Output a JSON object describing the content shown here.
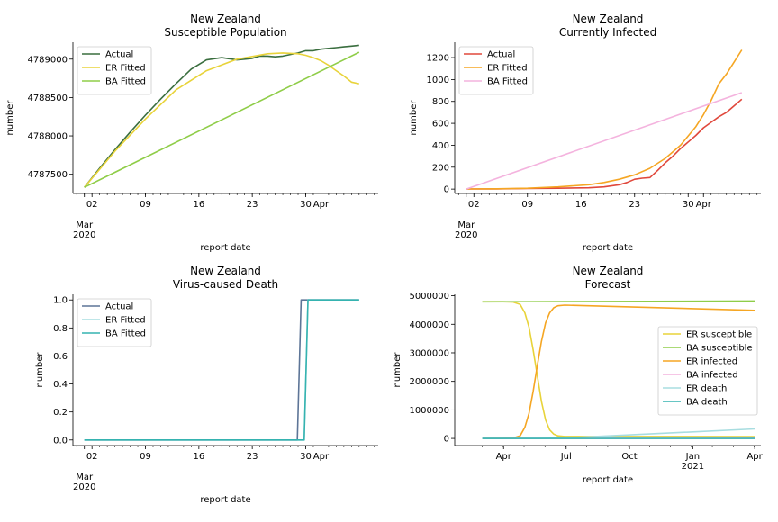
{
  "colors": {
    "actual_sus": "#3a6e3f",
    "er_sus": "#e8d33a",
    "ba_sus": "#8fcd48",
    "actual_inf": "#e0483c",
    "er_inf": "#f5a623",
    "ba_inf": "#f4b3de",
    "actual_death": "#5d7597",
    "er_death": "#a8dde0",
    "ba_death": "#35b3b0"
  },
  "chart_data": [
    {
      "type": "line",
      "title": "New Zealand\nSusceptible Population",
      "xlabel": "report date",
      "ylabel": "number",
      "xlim": [
        -1.5,
        38.5
      ],
      "ylim": [
        4787250,
        4789220
      ],
      "xticks": [
        {
          "pos": 1,
          "label": "02"
        },
        {
          "pos": 8,
          "label": "09"
        },
        {
          "pos": 15,
          "label": "16"
        },
        {
          "pos": 22,
          "label": "23"
        },
        {
          "pos": 29,
          "label": "30"
        },
        {
          "pos": 31,
          "label": "Apr"
        }
      ],
      "month_label": {
        "pos": 0,
        "label": "Mar\n2020"
      },
      "yticks": [
        4787500,
        4788000,
        4788500,
        4789000
      ],
      "legend": "top-left",
      "series": [
        {
          "name": "Actual",
          "color_key": "actual_sus",
          "x": [
            0,
            2,
            4,
            6,
            8,
            10,
            12,
            14,
            16,
            18,
            20,
            21,
            22,
            23,
            24,
            25,
            26,
            27,
            28,
            29,
            30,
            31,
            32,
            33,
            34,
            35,
            36
          ],
          "y": [
            4787330,
            4787580,
            4787820,
            4788050,
            4788270,
            4788480,
            4788680,
            4788870,
            4788990,
            4789020,
            4788990,
            4789000,
            4789010,
            4789040,
            4789040,
            4789030,
            4789040,
            4789060,
            4789080,
            4789110,
            4789110,
            4789130,
            4789140,
            4789150,
            4789160,
            4789170,
            4789180
          ]
        },
        {
          "name": "ER Fitted",
          "color_key": "er_sus",
          "x": [
            0,
            4,
            8,
            12,
            16,
            20,
            24,
            26,
            28,
            29,
            30,
            31,
            32,
            33,
            34,
            35,
            36
          ],
          "y": [
            4787330,
            4787800,
            4788220,
            4788600,
            4788850,
            4789000,
            4789070,
            4789080,
            4789070,
            4789050,
            4789020,
            4788980,
            4788920,
            4788850,
            4788780,
            4788700,
            4788680
          ]
        },
        {
          "name": "BA Fitted",
          "color_key": "ba_sus",
          "x": [
            0,
            36
          ],
          "y": [
            4787330,
            4789090
          ]
        }
      ]
    },
    {
      "type": "line",
      "title": "New Zealand\nCurrently Infected",
      "xlabel": "report date",
      "ylabel": "number",
      "xlim": [
        -1.5,
        38.5
      ],
      "ylim": [
        -40,
        1340
      ],
      "xticks": [
        {
          "pos": 1,
          "label": "02"
        },
        {
          "pos": 8,
          "label": "09"
        },
        {
          "pos": 15,
          "label": "16"
        },
        {
          "pos": 22,
          "label": "23"
        },
        {
          "pos": 29,
          "label": "30"
        },
        {
          "pos": 31,
          "label": "Apr"
        }
      ],
      "month_label": {
        "pos": 0,
        "label": "Mar\n2020"
      },
      "yticks": [
        0,
        200,
        400,
        600,
        800,
        1000,
        1200
      ],
      "legend": "top-left",
      "series": [
        {
          "name": "Actual",
          "color_key": "actual_inf",
          "x": [
            0,
            4,
            8,
            12,
            16,
            18,
            20,
            21,
            22,
            23,
            24,
            25,
            26,
            27,
            28,
            29,
            30,
            31,
            32,
            33,
            34,
            35,
            36
          ],
          "y": [
            1,
            2,
            5,
            8,
            12,
            20,
            40,
            60,
            90,
            100,
            105,
            170,
            240,
            300,
            370,
            430,
            490,
            560,
            610,
            660,
            700,
            760,
            820
          ]
        },
        {
          "name": "ER Fitted",
          "color_key": "er_inf",
          "x": [
            0,
            4,
            8,
            12,
            16,
            18,
            20,
            22,
            24,
            26,
            28,
            30,
            31,
            32,
            33,
            34,
            35,
            36
          ],
          "y": [
            1,
            3,
            8,
            20,
            40,
            60,
            90,
            130,
            190,
            280,
            400,
            570,
            680,
            810,
            960,
            1050,
            1160,
            1270
          ]
        },
        {
          "name": "BA Fitted",
          "color_key": "ba_inf",
          "x": [
            0,
            36
          ],
          "y": [
            0,
            880
          ]
        }
      ]
    },
    {
      "type": "line",
      "title": "New Zealand\nVirus-caused Death",
      "xlabel": "report date",
      "ylabel": "number",
      "xlim": [
        -1.5,
        38.5
      ],
      "ylim": [
        -0.04,
        1.04
      ],
      "xticks": [
        {
          "pos": 1,
          "label": "02"
        },
        {
          "pos": 8,
          "label": "09"
        },
        {
          "pos": 15,
          "label": "16"
        },
        {
          "pos": 22,
          "label": "23"
        },
        {
          "pos": 29,
          "label": "30"
        },
        {
          "pos": 31,
          "label": "Apr"
        }
      ],
      "month_label": {
        "pos": 0,
        "label": "Mar\n2020"
      },
      "yticks": [
        0.0,
        0.2,
        0.4,
        0.6,
        0.8,
        1.0
      ],
      "ytick_labels": [
        "0.0",
        "0.2",
        "0.4",
        "0.6",
        "0.8",
        "1.0"
      ],
      "legend": "top-left",
      "series": [
        {
          "name": "Actual",
          "color_key": "actual_death",
          "x": [
            0,
            27.9,
            28.4,
            36
          ],
          "y": [
            0,
            0,
            1,
            1
          ]
        },
        {
          "name": "ER Fitted",
          "color_key": "er_death",
          "x": [
            0,
            28.8,
            29.3,
            36
          ],
          "y": [
            0,
            0,
            1,
            1
          ]
        },
        {
          "name": "BA Fitted",
          "color_key": "ba_death",
          "x": [
            0,
            28.8,
            29.3,
            36
          ],
          "y": [
            0,
            0,
            1,
            1
          ]
        }
      ]
    },
    {
      "type": "line",
      "title": "New Zealand\nForecast",
      "xlabel": "report date",
      "ylabel": "number",
      "xlim": [
        -40,
        405
      ],
      "ylim": [
        -250000,
        5050000
      ],
      "xticks": [
        {
          "pos": 31,
          "label": "Apr"
        },
        {
          "pos": 122,
          "label": "Jul"
        },
        {
          "pos": 214,
          "label": "Oct"
        },
        {
          "pos": 306,
          "label": "Jan\n2021"
        },
        {
          "pos": 396,
          "label": "Apr"
        }
      ],
      "yticks": [
        0,
        1000000,
        2000000,
        3000000,
        4000000,
        5000000
      ],
      "ytick_labels": [
        "0",
        "1000000",
        "2000000",
        "3000000",
        "4000000",
        "5000000"
      ],
      "legend": "center-right",
      "series": [
        {
          "name": "ER susceptible",
          "color_key": "er_sus",
          "x": [
            0,
            30,
            45,
            55,
            62,
            68,
            74,
            80,
            86,
            92,
            98,
            104,
            110,
            120,
            150,
            396
          ],
          "y": [
            4790000,
            4790000,
            4780000,
            4700000,
            4400000,
            3900000,
            3100000,
            2200000,
            1300000,
            650000,
            300000,
            150000,
            90000,
            70000,
            68000,
            65000
          ]
        },
        {
          "name": "BA susceptible",
          "color_key": "ba_sus",
          "x": [
            0,
            396
          ],
          "y": [
            4789000,
            4815000
          ]
        },
        {
          "name": "ER infected",
          "color_key": "er_inf",
          "x": [
            0,
            30,
            45,
            55,
            62,
            68,
            74,
            80,
            86,
            92,
            98,
            104,
            110,
            120,
            396
          ],
          "y": [
            0,
            5000,
            15000,
            90000,
            390000,
            880000,
            1650000,
            2550000,
            3400000,
            4050000,
            4400000,
            4580000,
            4650000,
            4670000,
            4490000
          ]
        },
        {
          "name": "BA infected",
          "color_key": "ba_inf",
          "x": [
            0,
            396
          ],
          "y": [
            0,
            9700
          ]
        },
        {
          "name": "ER death",
          "color_key": "er_death",
          "x": [
            0,
            80,
            120,
            396
          ],
          "y": [
            0,
            2000,
            15000,
            335000
          ]
        },
        {
          "name": "BA death",
          "color_key": "ba_death",
          "x": [
            0,
            396
          ],
          "y": [
            0,
            10
          ]
        }
      ]
    }
  ]
}
